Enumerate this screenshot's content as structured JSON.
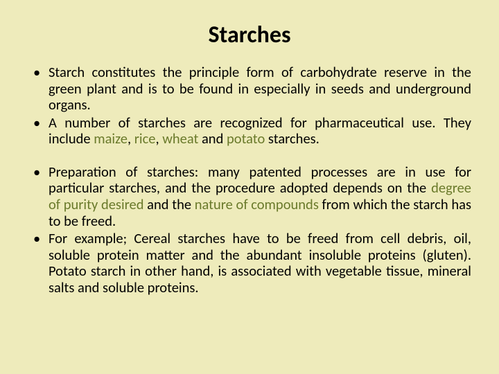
{
  "title": "Starches",
  "title_fontsize": 34,
  "body_fontsize": 20.5,
  "text_color": "#000000",
  "background_color": "#eeebbb",
  "highlight_color": "#6a7a2b",
  "bullets_block1": [
    {
      "parts": [
        {
          "t": "Starch constitutes the principle form of carbohydrate reserve in the green plant and is to be found in especially in seeds and underground organs.",
          "hl": false
        }
      ]
    },
    {
      "parts": [
        {
          "t": "A number of starches are recognized for pharmaceutical use. They include ",
          "hl": false
        },
        {
          "t": "maize",
          "hl": true
        },
        {
          "t": ", ",
          "hl": false
        },
        {
          "t": "rice",
          "hl": true
        },
        {
          "t": ", ",
          "hl": false
        },
        {
          "t": "wheat",
          "hl": true
        },
        {
          "t": " and ",
          "hl": false
        },
        {
          "t": "potato",
          "hl": true
        },
        {
          "t": " starches.",
          "hl": false
        }
      ]
    }
  ],
  "bullets_block2": [
    {
      "parts": [
        {
          "t": "Preparation of starches: many patented processes are in use for particular starches, and the procedure adopted depends on the ",
          "hl": false
        },
        {
          "t": "degree of purity desired ",
          "hl": true
        },
        {
          "t": "and the ",
          "hl": false
        },
        {
          "t": "nature of compounds ",
          "hl": true
        },
        {
          "t": "from which the starch has to be freed.",
          "hl": false
        }
      ]
    },
    {
      "parts": [
        {
          "t": "For example; Cereal starches have to be freed from cell debris, oil, soluble protein matter and the abundant insoluble proteins (gluten). Potato starch in other hand, is associated with vegetable tissue, mineral salts and soluble proteins.",
          "hl": false
        }
      ]
    }
  ]
}
